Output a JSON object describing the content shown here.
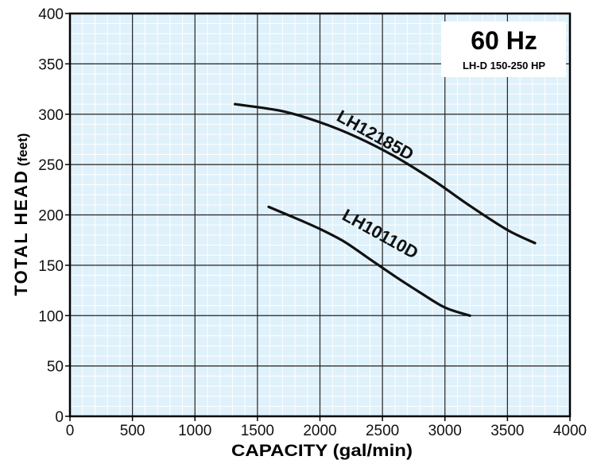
{
  "chart_data": {
    "type": "line",
    "xlabel": "CAPACITY (gal/min)",
    "ylabel_main": "TOTAL HEAD",
    "ylabel_unit": "(feet)",
    "xlim": [
      0,
      4000
    ],
    "ylim": [
      0,
      400
    ],
    "x_ticks": [
      "0",
      "500",
      "1000",
      "1500",
      "2000",
      "2500",
      "3000",
      "3500",
      "4000"
    ],
    "y_ticks": [
      "0",
      "50",
      "100",
      "150",
      "200",
      "250",
      "300",
      "350",
      "400"
    ],
    "grid": true,
    "colors": {
      "plot_background": "#dff1fb",
      "major_grid": "#222222",
      "minor_grid": "#ffffff",
      "curve": "#111111",
      "box_background": "#ffffff"
    },
    "info_box": {
      "frequency": "60 Hz",
      "model_range": "LH-D 150-250 HP"
    },
    "series": [
      {
        "name": "LH12185D",
        "points": [
          [
            1320,
            310
          ],
          [
            1700,
            303
          ],
          [
            2000,
            292
          ],
          [
            2300,
            277
          ],
          [
            2600,
            258
          ],
          [
            2900,
            235
          ],
          [
            3200,
            209
          ],
          [
            3500,
            185
          ],
          [
            3720,
            172
          ]
        ]
      },
      {
        "name": "LH10110D",
        "points": [
          [
            1590,
            208
          ],
          [
            1800,
            197
          ],
          [
            2000,
            186
          ],
          [
            2200,
            173
          ],
          [
            2400,
            156
          ],
          [
            2600,
            139
          ],
          [
            2800,
            123
          ],
          [
            3000,
            108
          ],
          [
            3200,
            100
          ]
        ]
      }
    ]
  }
}
